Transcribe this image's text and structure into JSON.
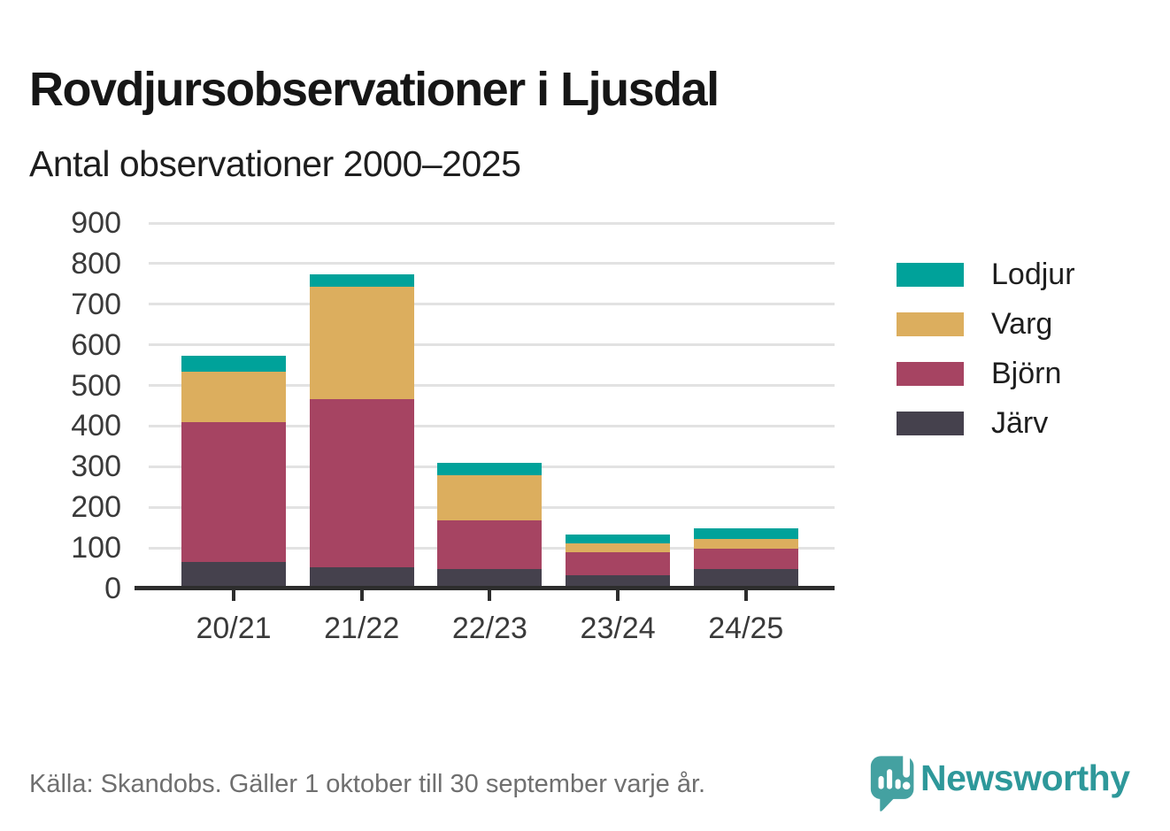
{
  "page": {
    "title": "Rovdjursobservationer i Ljusdal",
    "subtitle": "Antal observationer 2000–2025"
  },
  "footer": {
    "source_label": "Källa: Skandobs. Gäller 1 oktober till 30 september varje år.",
    "brand_name": "Newsworthy"
  },
  "colors": {
    "lodjur": "#00a29a",
    "varg": "#dcae5e",
    "bjorn": "#a64462",
    "jarv": "#45414d",
    "axis": "#2d2d2d",
    "gridline": "#e2e2e2",
    "brand_teal": "#44a1a1",
    "brand_text": "#2e989a",
    "footer_text": "#6f6f6f"
  },
  "chart_data": {
    "type": "bar",
    "stacked": true,
    "title": "Antal observationer 2000–2025",
    "xlabel": "",
    "ylabel": "",
    "categories": [
      "20/21",
      "21/22",
      "22/23",
      "23/24",
      "24/25"
    ],
    "series": [
      {
        "name": "Järv",
        "color": "#45414d",
        "values": [
          65,
          53,
          49,
          32,
          48
        ]
      },
      {
        "name": "Björn",
        "color": "#a64462",
        "values": [
          345,
          414,
          118,
          58,
          50
        ]
      },
      {
        "name": "Varg",
        "color": "#dcae5e",
        "values": [
          123,
          277,
          111,
          22,
          24
        ]
      },
      {
        "name": "Lodjur",
        "color": "#00a29a",
        "values": [
          41,
          29,
          32,
          22,
          26
        ]
      }
    ],
    "totals": [
      574,
      773,
      310,
      134,
      148
    ],
    "ylim": [
      0,
      900
    ],
    "yticks": [
      0,
      100,
      200,
      300,
      400,
      500,
      600,
      700,
      800,
      900
    ],
    "grid": true,
    "legend_position": "right",
    "legend_order": [
      "Lodjur",
      "Varg",
      "Björn",
      "Järv"
    ]
  }
}
